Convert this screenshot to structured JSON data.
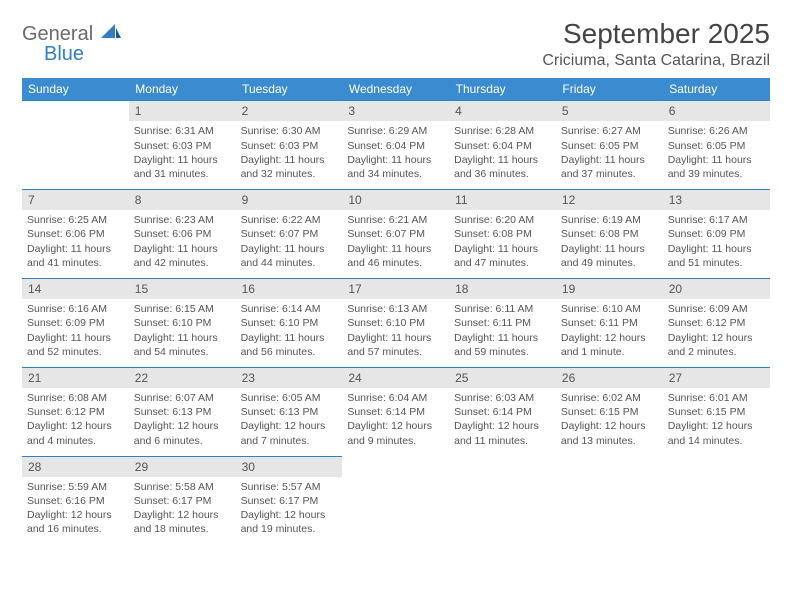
{
  "logo": {
    "word1": "General",
    "word2": "Blue"
  },
  "title": "September 2025",
  "location": "Criciuma, Santa Catarina, Brazil",
  "colors": {
    "header_bg": "#3b8bd0",
    "header_text": "#ffffff",
    "daynum_bg": "#e6e6e6",
    "text": "#555555",
    "rule": "#2f7fc2",
    "logo_blue": "#2f7fc2",
    "logo_gray": "#6a6a6a"
  },
  "day_headers": [
    "Sunday",
    "Monday",
    "Tuesday",
    "Wednesday",
    "Thursday",
    "Friday",
    "Saturday"
  ],
  "weeks": [
    [
      null,
      {
        "n": "1",
        "sr": "6:31 AM",
        "ss": "6:03 PM",
        "dl": "11 hours and 31 minutes."
      },
      {
        "n": "2",
        "sr": "6:30 AM",
        "ss": "6:03 PM",
        "dl": "11 hours and 32 minutes."
      },
      {
        "n": "3",
        "sr": "6:29 AM",
        "ss": "6:04 PM",
        "dl": "11 hours and 34 minutes."
      },
      {
        "n": "4",
        "sr": "6:28 AM",
        "ss": "6:04 PM",
        "dl": "11 hours and 36 minutes."
      },
      {
        "n": "5",
        "sr": "6:27 AM",
        "ss": "6:05 PM",
        "dl": "11 hours and 37 minutes."
      },
      {
        "n": "6",
        "sr": "6:26 AM",
        "ss": "6:05 PM",
        "dl": "11 hours and 39 minutes."
      }
    ],
    [
      {
        "n": "7",
        "sr": "6:25 AM",
        "ss": "6:06 PM",
        "dl": "11 hours and 41 minutes."
      },
      {
        "n": "8",
        "sr": "6:23 AM",
        "ss": "6:06 PM",
        "dl": "11 hours and 42 minutes."
      },
      {
        "n": "9",
        "sr": "6:22 AM",
        "ss": "6:07 PM",
        "dl": "11 hours and 44 minutes."
      },
      {
        "n": "10",
        "sr": "6:21 AM",
        "ss": "6:07 PM",
        "dl": "11 hours and 46 minutes."
      },
      {
        "n": "11",
        "sr": "6:20 AM",
        "ss": "6:08 PM",
        "dl": "11 hours and 47 minutes."
      },
      {
        "n": "12",
        "sr": "6:19 AM",
        "ss": "6:08 PM",
        "dl": "11 hours and 49 minutes."
      },
      {
        "n": "13",
        "sr": "6:17 AM",
        "ss": "6:09 PM",
        "dl": "11 hours and 51 minutes."
      }
    ],
    [
      {
        "n": "14",
        "sr": "6:16 AM",
        "ss": "6:09 PM",
        "dl": "11 hours and 52 minutes."
      },
      {
        "n": "15",
        "sr": "6:15 AM",
        "ss": "6:10 PM",
        "dl": "11 hours and 54 minutes."
      },
      {
        "n": "16",
        "sr": "6:14 AM",
        "ss": "6:10 PM",
        "dl": "11 hours and 56 minutes."
      },
      {
        "n": "17",
        "sr": "6:13 AM",
        "ss": "6:10 PM",
        "dl": "11 hours and 57 minutes."
      },
      {
        "n": "18",
        "sr": "6:11 AM",
        "ss": "6:11 PM",
        "dl": "11 hours and 59 minutes."
      },
      {
        "n": "19",
        "sr": "6:10 AM",
        "ss": "6:11 PM",
        "dl": "12 hours and 1 minute."
      },
      {
        "n": "20",
        "sr": "6:09 AM",
        "ss": "6:12 PM",
        "dl": "12 hours and 2 minutes."
      }
    ],
    [
      {
        "n": "21",
        "sr": "6:08 AM",
        "ss": "6:12 PM",
        "dl": "12 hours and 4 minutes."
      },
      {
        "n": "22",
        "sr": "6:07 AM",
        "ss": "6:13 PM",
        "dl": "12 hours and 6 minutes."
      },
      {
        "n": "23",
        "sr": "6:05 AM",
        "ss": "6:13 PM",
        "dl": "12 hours and 7 minutes."
      },
      {
        "n": "24",
        "sr": "6:04 AM",
        "ss": "6:14 PM",
        "dl": "12 hours and 9 minutes."
      },
      {
        "n": "25",
        "sr": "6:03 AM",
        "ss": "6:14 PM",
        "dl": "12 hours and 11 minutes."
      },
      {
        "n": "26",
        "sr": "6:02 AM",
        "ss": "6:15 PM",
        "dl": "12 hours and 13 minutes."
      },
      {
        "n": "27",
        "sr": "6:01 AM",
        "ss": "6:15 PM",
        "dl": "12 hours and 14 minutes."
      }
    ],
    [
      {
        "n": "28",
        "sr": "5:59 AM",
        "ss": "6:16 PM",
        "dl": "12 hours and 16 minutes."
      },
      {
        "n": "29",
        "sr": "5:58 AM",
        "ss": "6:17 PM",
        "dl": "12 hours and 18 minutes."
      },
      {
        "n": "30",
        "sr": "5:57 AM",
        "ss": "6:17 PM",
        "dl": "12 hours and 19 minutes."
      },
      null,
      null,
      null,
      null
    ]
  ],
  "labels": {
    "sunrise": "Sunrise:",
    "sunset": "Sunset:",
    "daylight": "Daylight:"
  }
}
